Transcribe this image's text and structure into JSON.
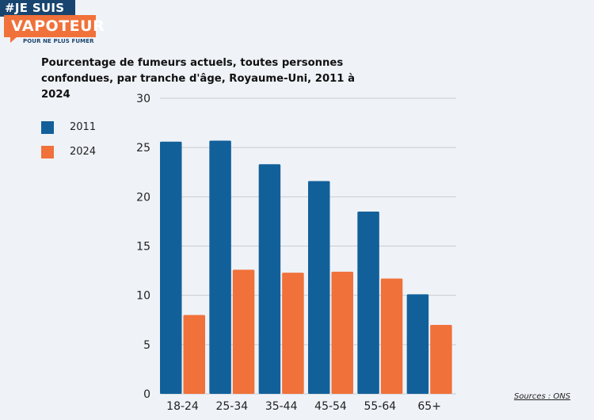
{
  "logo": {
    "line1": "#JE SUIS",
    "line2": "VAPOTEUR",
    "line3": "POUR NE PLUS FUMER"
  },
  "source": "Sources : ONS",
  "colors": {
    "series_2011": "#12609a",
    "series_2024": "#f0713a",
    "grid": "#c9ccd2"
  },
  "chart_data": {
    "type": "bar",
    "title": "Pourcentage de fumeurs actuels, toutes personnes confondues, par tranche d'âge, Royaume-Uni, 2011 à 2024",
    "xlabel": "",
    "ylabel": "",
    "categories": [
      "18-24",
      "25-34",
      "35-44",
      "45-54",
      "55-64",
      "65+"
    ],
    "series": [
      {
        "name": "2011",
        "values": [
          25.6,
          25.7,
          23.3,
          21.6,
          18.5,
          10.1
        ]
      },
      {
        "name": "2024",
        "values": [
          8.0,
          12.6,
          12.3,
          12.4,
          11.7,
          7.0
        ]
      }
    ],
    "ylim": [
      0,
      30
    ],
    "yticks": [
      0,
      5,
      10,
      15,
      20,
      25,
      30
    ],
    "grid": true,
    "legend_position": "top-left"
  }
}
